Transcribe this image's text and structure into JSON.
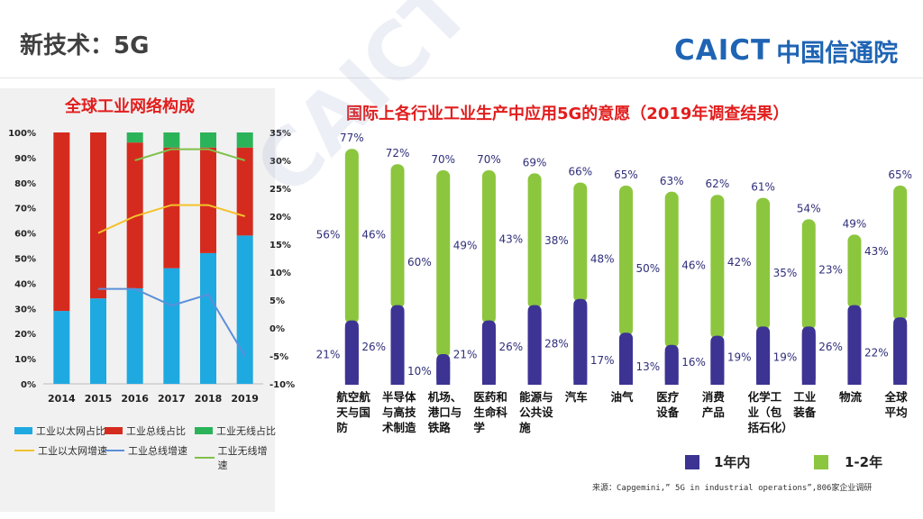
{
  "slide": {
    "title": "新技术：5G",
    "logo_en": "CAICT",
    "logo_cn": "中国信通院",
    "watermark": "CAICT 中国信通院",
    "source": "来源：Capgemini,” 5G in industrial operations”,806家企业调研"
  },
  "colors": {
    "ethernet": "#1fa9e1",
    "fieldbus": "#d52b1e",
    "wireless": "#2bb35a",
    "ethernet_growth": "#f3c22b",
    "fieldbus_growth": "#5b8fd9",
    "wireless_growth": "#80c04a",
    "within_1yr": "#3c3393",
    "one_two_yr": "#8cc63e",
    "title_red": "#e21d1d"
  },
  "chart_data": [
    {
      "type": "bar",
      "title": "全球工业网络构成",
      "categories": [
        "2014",
        "2015",
        "2016",
        "2017",
        "2018",
        "2019"
      ],
      "ylim": [
        0,
        100
      ],
      "y_ticks": [
        "0%",
        "10%",
        "20%",
        "30%",
        "40%",
        "50%",
        "60%",
        "70%",
        "80%",
        "90%",
        "100%"
      ],
      "y2lim": [
        -10,
        35
      ],
      "y2_ticks": [
        "-10%",
        "-5%",
        "0%",
        "5%",
        "10%",
        "15%",
        "20%",
        "25%",
        "30%",
        "35%"
      ],
      "stacked": true,
      "series": [
        {
          "name": "工业以太网占比",
          "kind": "bar",
          "color_key": "ethernet",
          "values": [
            29,
            34,
            38,
            46,
            52,
            59
          ]
        },
        {
          "name": "工业总线占比",
          "kind": "bar",
          "color_key": "fieldbus",
          "values": [
            71,
            66,
            58,
            48,
            42,
            35
          ]
        },
        {
          "name": "工业无线占比",
          "kind": "bar",
          "color_key": "wireless",
          "values": [
            0,
            0,
            4,
            6,
            6,
            6
          ]
        },
        {
          "name": "工业以太网增速",
          "kind": "line",
          "axis": "right",
          "color_key": "ethernet_growth",
          "x": [
            "2015",
            "2016",
            "2017",
            "2018",
            "2019"
          ],
          "values": [
            17,
            20,
            22,
            22,
            20
          ]
        },
        {
          "name": "工业总线增速",
          "kind": "line",
          "axis": "right",
          "color_key": "fieldbus_growth",
          "x": [
            "2015",
            "2016",
            "2017",
            "2018",
            "2019"
          ],
          "values": [
            7,
            7,
            4,
            6,
            -5
          ]
        },
        {
          "name": "工业无线增速",
          "kind": "line",
          "axis": "right",
          "color_key": "wireless_growth",
          "x": [
            "2016",
            "2017",
            "2018",
            "2019"
          ],
          "values": [
            30,
            32,
            32,
            30
          ]
        }
      ],
      "legend_position": "bottom",
      "grid": false
    },
    {
      "type": "bar",
      "title": "国际上各行业工业生产中应用5G的意愿（2019年调查结果）",
      "stacked": true,
      "categories": [
        [
          "航空航",
          "天与国",
          "防"
        ],
        [
          "半导体",
          "与高技",
          "术制造"
        ],
        [
          "机场、",
          "港口与",
          "铁路"
        ],
        [
          "医药和",
          "生命科",
          "学"
        ],
        [
          "能源与",
          "公共设",
          "施"
        ],
        [
          "汽车"
        ],
        [
          "油气"
        ],
        [
          "医疗",
          "设备"
        ],
        [
          "消费",
          "产品"
        ],
        [
          "化学工",
          "业（包",
          "括石化）"
        ],
        [
          "工业",
          "装备"
        ],
        [
          "物流"
        ],
        [
          "全球",
          "平均"
        ]
      ],
      "ylim": [
        0,
        80
      ],
      "series": [
        {
          "name": "1年内",
          "color_key": "within_1yr",
          "values": [
            21,
            26,
            10,
            21,
            26,
            28,
            17,
            13,
            16,
            19,
            19,
            26,
            22
          ],
          "labels": [
            "21%",
            "26%",
            "10%",
            "21%",
            "26%",
            "28%",
            "17%",
            "13%",
            "16%",
            "19%",
            "19%",
            "26%",
            "22%"
          ]
        },
        {
          "name": "1-2年",
          "color_key": "one_two_yr",
          "values": [
            56,
            46,
            60,
            49,
            43,
            38,
            48,
            50,
            46,
            42,
            35,
            23,
            43
          ],
          "labels": [
            "56%",
            "46%",
            "60%",
            "49%",
            "43%",
            "38%",
            "48%",
            "50%",
            "46%",
            "42%",
            "35%",
            "23%",
            "43%"
          ]
        }
      ],
      "totals": [
        "77%",
        "72%",
        "70%",
        "70%",
        "69%",
        "66%",
        "65%",
        "63%",
        "62%",
        "61%",
        "54%",
        "49%",
        "65%"
      ],
      "total_values": [
        77,
        72,
        70,
        70,
        69,
        66,
        65,
        63,
        62,
        61,
        54,
        49,
        65
      ],
      "legend_position": "bottom-right",
      "grid": false
    }
  ]
}
